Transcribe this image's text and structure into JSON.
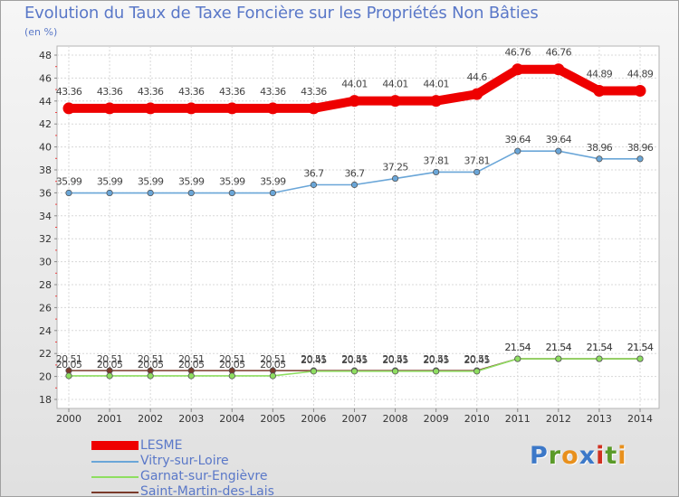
{
  "title": "Evolution du Taux de Taxe Foncière sur les Propriétés Non Bâties",
  "unit_label": "(en %)",
  "brand": [
    "P",
    "r",
    "o",
    "x",
    "i",
    "t",
    "i"
  ],
  "brand_colors": [
    "#3c78c8",
    "#5a9a28",
    "#e8901c",
    "#3c78c8",
    "#d03020",
    "#5a9a28",
    "#e8901c"
  ],
  "chart_data": {
    "type": "line",
    "title": "Evolution du Taux de Taxe Foncière sur les Propriétés Non Bâties",
    "xlabel": "",
    "ylabel": "(en %)",
    "x": [
      "2000",
      "2001",
      "2002",
      "2003",
      "2004",
      "2005",
      "2006",
      "2007",
      "2008",
      "2009",
      "2010",
      "2011",
      "2012",
      "2013",
      "2014"
    ],
    "ylim": [
      18,
      48
    ],
    "yticks": [
      18,
      20,
      22,
      24,
      26,
      28,
      30,
      32,
      34,
      36,
      38,
      40,
      42,
      44,
      46,
      48
    ],
    "grid": true,
    "legend_position": "bottom-left",
    "series": [
      {
        "name": "LESME",
        "color": "#ee0000",
        "values": [
          43.36,
          43.36,
          43.36,
          43.36,
          43.36,
          43.36,
          43.36,
          44.01,
          44.01,
          44.01,
          44.6,
          46.76,
          46.76,
          44.89,
          44.89
        ],
        "labels": [
          "43.36",
          "43.36",
          "43.36",
          "43.36",
          "43.36",
          "43.36",
          "43.36",
          "44.01",
          "44.01",
          "44.01",
          "44.6",
          "46.76",
          "46.76",
          "44.89",
          "44.89"
        ]
      },
      {
        "name": "Vitry-sur-Loire",
        "color": "#6aa6d8",
        "values": [
          35.99,
          35.99,
          35.99,
          35.99,
          35.99,
          35.99,
          36.7,
          36.7,
          37.25,
          37.81,
          37.81,
          39.64,
          39.64,
          38.96,
          38.96
        ],
        "labels": [
          "35.99",
          "35.99",
          "35.99",
          "35.99",
          "35.99",
          "35.99",
          "36.7",
          "36.7",
          "37.25",
          "37.81",
          "37.81",
          "39.64",
          "39.64",
          "38.96",
          "38.96"
        ]
      },
      {
        "name": "Garnat-sur-Engièvre",
        "color": "#8ede60",
        "values": [
          20.05,
          20.05,
          20.05,
          20.05,
          20.05,
          20.05,
          20.45,
          20.45,
          20.45,
          20.45,
          20.45,
          21.54,
          21.54,
          21.54,
          21.54
        ],
        "labels": [
          "20.05",
          "20.05",
          "20.05",
          "20.05",
          "20.05",
          "20.05",
          "20.45",
          "20.45",
          "20.45",
          "20.45",
          "20.45",
          "21.54",
          "21.54",
          "21.54",
          "21.54"
        ]
      },
      {
        "name": "Saint-Martin-des-Lais",
        "color": "#7a3a2a",
        "values": [
          20.51,
          20.51,
          20.51,
          20.51,
          20.51,
          20.51,
          20.51,
          20.51,
          20.51,
          20.51,
          20.51,
          21.54,
          21.54,
          21.54,
          21.54
        ],
        "labels": [
          "20.51",
          "20.51",
          "20.51",
          "20.51",
          "20.51",
          "20.51",
          "20.51",
          "20.51",
          "20.51",
          "20.51",
          "20.51",
          "21.54",
          "21.54",
          "21.54",
          "21.54"
        ]
      }
    ]
  }
}
